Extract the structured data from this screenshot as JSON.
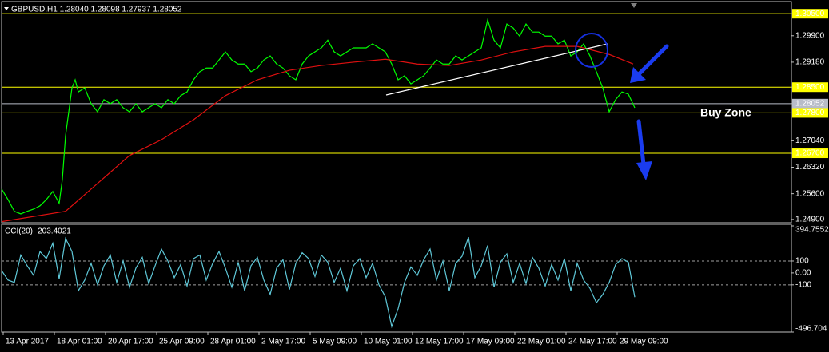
{
  "chart_data": [
    {
      "type": "line",
      "title": "GBPUSD,H1  1.28040 1.28098 1.27937 1.28052",
      "annotation": "Buy Zone",
      "xlim": [
        0,
        988
      ],
      "ylim": [
        1.2481,
        1.3083
      ],
      "yticks": [
        {
          "value": 1.305,
          "label": "1.30500"
        },
        {
          "value": 1.299,
          "label": "1.29900"
        },
        {
          "value": 1.2918,
          "label": "1.29180"
        },
        {
          "value": 1.285,
          "label": "1.28500"
        },
        {
          "value": 1.28052,
          "label": "1.28052"
        },
        {
          "value": 1.278,
          "label": "1.27800"
        },
        {
          "value": 1.2704,
          "label": "1.27040"
        },
        {
          "value": 1.267,
          "label": "1.26700"
        },
        {
          "value": 1.2632,
          "label": "1.26320"
        },
        {
          "value": 1.256,
          "label": "1.25600"
        },
        {
          "value": 1.249,
          "label": "1.24900"
        }
      ],
      "levels": [
        {
          "value": 1.305,
          "color": "#ffff00"
        },
        {
          "value": 1.285,
          "color": "#ffff00"
        },
        {
          "value": 1.28052,
          "color": "#b8bcc8"
        },
        {
          "value": 1.278,
          "color": "#ffff00"
        },
        {
          "value": 1.267,
          "color": "#ffff00"
        }
      ],
      "series": [
        {
          "name": "GBPUSD",
          "color": "#00ff00",
          "x": [
            0,
            8,
            16,
            24,
            32,
            40,
            48,
            56,
            64,
            72,
            76,
            80,
            84,
            88,
            92,
            96,
            104,
            112,
            120,
            128,
            136,
            144,
            152,
            160,
            168,
            176,
            184,
            192,
            200,
            208,
            216,
            224,
            232,
            240,
            248,
            256,
            264,
            272,
            280,
            288,
            296,
            304,
            312,
            320,
            328,
            336,
            344,
            352,
            360,
            368,
            376,
            384,
            392,
            400,
            408,
            416,
            424,
            432,
            440,
            448,
            456,
            464,
            472,
            480,
            488,
            496,
            504,
            512,
            520,
            528,
            536,
            544,
            552,
            560,
            568,
            576,
            584,
            592,
            600,
            608,
            616,
            624,
            632,
            640,
            648,
            656,
            664,
            672,
            680,
            688,
            696,
            704,
            712,
            720,
            728,
            736,
            744,
            752,
            760,
            768,
            776,
            784,
            792
          ],
          "values": [
            1.2573,
            1.2544,
            1.2512,
            1.2505,
            1.2512,
            1.2518,
            1.2527,
            1.2544,
            1.2566,
            1.2534,
            1.2599,
            1.2718,
            1.2783,
            1.2848,
            1.287,
            1.2837,
            1.2848,
            1.2805,
            1.2783,
            1.2816,
            1.2805,
            1.2816,
            1.2794,
            1.2783,
            1.2805,
            1.2783,
            1.2794,
            1.2805,
            1.2794,
            1.2816,
            1.2805,
            1.2827,
            1.2837,
            1.287,
            1.2892,
            1.2902,
            1.2902,
            1.2924,
            1.2946,
            1.2924,
            1.2913,
            1.2913,
            1.2892,
            1.2902,
            1.2924,
            1.2935,
            1.2913,
            1.2902,
            1.2881,
            1.287,
            1.2913,
            1.2935,
            1.2946,
            1.2957,
            1.2978,
            1.2946,
            1.2935,
            1.2946,
            1.2957,
            1.2957,
            1.2957,
            1.2968,
            1.2957,
            1.2946,
            1.2913,
            1.287,
            1.2881,
            1.2859,
            1.287,
            1.2881,
            1.2902,
            1.2924,
            1.2913,
            1.2913,
            1.2935,
            1.2924,
            1.2935,
            1.2946,
            1.2957,
            1.3033,
            1.2978,
            1.2957,
            1.3022,
            1.3011,
            1.2989,
            1.3022,
            1.3,
            1.3,
            1.2989,
            1.2989,
            1.2968,
            1.2978,
            1.2935,
            1.2946,
            1.2968,
            1.2935,
            1.2892,
            1.2848,
            1.2783,
            1.2816,
            1.2837,
            1.2831,
            1.2794
          ]
        },
        {
          "name": "MA",
          "color": "#e01010",
          "x": [
            0,
            80,
            120,
            160,
            200,
            240,
            280,
            320,
            360,
            400,
            440,
            480,
            520,
            560,
            600,
            640,
            680,
            720,
            760,
            790
          ],
          "values": [
            1.2484,
            1.2512,
            1.2588,
            1.2664,
            1.2707,
            1.2761,
            1.2827,
            1.287,
            1.2896,
            1.2909,
            1.2918,
            1.2926,
            1.2913,
            1.2909,
            1.2924,
            1.2946,
            1.2961,
            1.2961,
            1.2939,
            1.2913
          ]
        }
      ]
    },
    {
      "type": "line",
      "title": "CCI(20) -203.4021",
      "xlim": [
        0,
        988
      ],
      "ylim": [
        -496.704,
        394.7552
      ],
      "yticks": [
        394.7552,
        100,
        {
          "value": 0,
          "label": "0.00"
        },
        -100,
        -496.704
      ],
      "dashed_levels": [
        100,
        -100
      ],
      "xticks": [
        {
          "value": 2,
          "label": "13 Apr 2017"
        },
        {
          "value": 66,
          "label": "18 Apr 01:00"
        },
        {
          "value": 130,
          "label": "20 Apr 17:00"
        },
        {
          "value": 194,
          "label": "25 Apr 09:00"
        },
        {
          "value": 258,
          "label": "28 Apr 01:00"
        },
        {
          "value": 322,
          "label": "2 May 17:00"
        },
        {
          "value": 386,
          "label": "5 May 09:00"
        },
        {
          "value": 450,
          "label": "10 May 01:00"
        },
        {
          "value": 514,
          "label": "12 May 17:00"
        },
        {
          "value": 578,
          "label": "17 May 09:00"
        },
        {
          "value": 642,
          "label": "22 May 01:00"
        },
        {
          "value": 706,
          "label": "24 May 17:00"
        },
        {
          "value": 770,
          "label": "29 May 09:00"
        }
      ],
      "series": [
        {
          "name": "CCI(20)",
          "color": "#5fc8d8",
          "x": [
            0,
            8,
            16,
            24,
            32,
            40,
            48,
            56,
            64,
            72,
            80,
            88,
            96,
            104,
            112,
            120,
            128,
            136,
            144,
            152,
            160,
            168,
            176,
            184,
            192,
            200,
            208,
            216,
            224,
            232,
            240,
            248,
            256,
            264,
            272,
            280,
            288,
            296,
            304,
            312,
            320,
            328,
            336,
            344,
            352,
            360,
            368,
            376,
            384,
            392,
            400,
            408,
            416,
            424,
            432,
            440,
            448,
            456,
            464,
            472,
            480,
            488,
            496,
            504,
            512,
            520,
            528,
            536,
            544,
            552,
            560,
            568,
            576,
            584,
            592,
            600,
            608,
            616,
            624,
            632,
            640,
            648,
            656,
            664,
            672,
            680,
            688,
            696,
            704,
            712,
            720,
            728,
            736,
            744,
            752,
            760,
            768,
            776,
            784,
            792
          ],
          "values": [
            20,
            -60,
            -80,
            150,
            60,
            -20,
            180,
            120,
            250,
            -50,
            290,
            180,
            -150,
            -60,
            80,
            -100,
            60,
            150,
            -80,
            100,
            -120,
            40,
            130,
            -90,
            60,
            200,
            100,
            -40,
            70,
            -110,
            120,
            150,
            -60,
            80,
            180,
            40,
            -120,
            90,
            -150,
            60,
            130,
            -60,
            -180,
            40,
            110,
            -140,
            80,
            170,
            120,
            -30,
            150,
            90,
            -80,
            40,
            -150,
            60,
            120,
            -40,
            80,
            -100,
            -200,
            -450,
            -300,
            -80,
            50,
            -20,
            110,
            200,
            -60,
            100,
            -150,
            80,
            140,
            300,
            -40,
            60,
            230,
            -120,
            90,
            160,
            -80,
            80,
            -90,
            130,
            40,
            -110,
            70,
            -60,
            120,
            -150,
            80,
            -60,
            -130,
            -250,
            -180,
            -80,
            70,
            120,
            90,
            -203.4021
          ]
        }
      ]
    }
  ]
}
